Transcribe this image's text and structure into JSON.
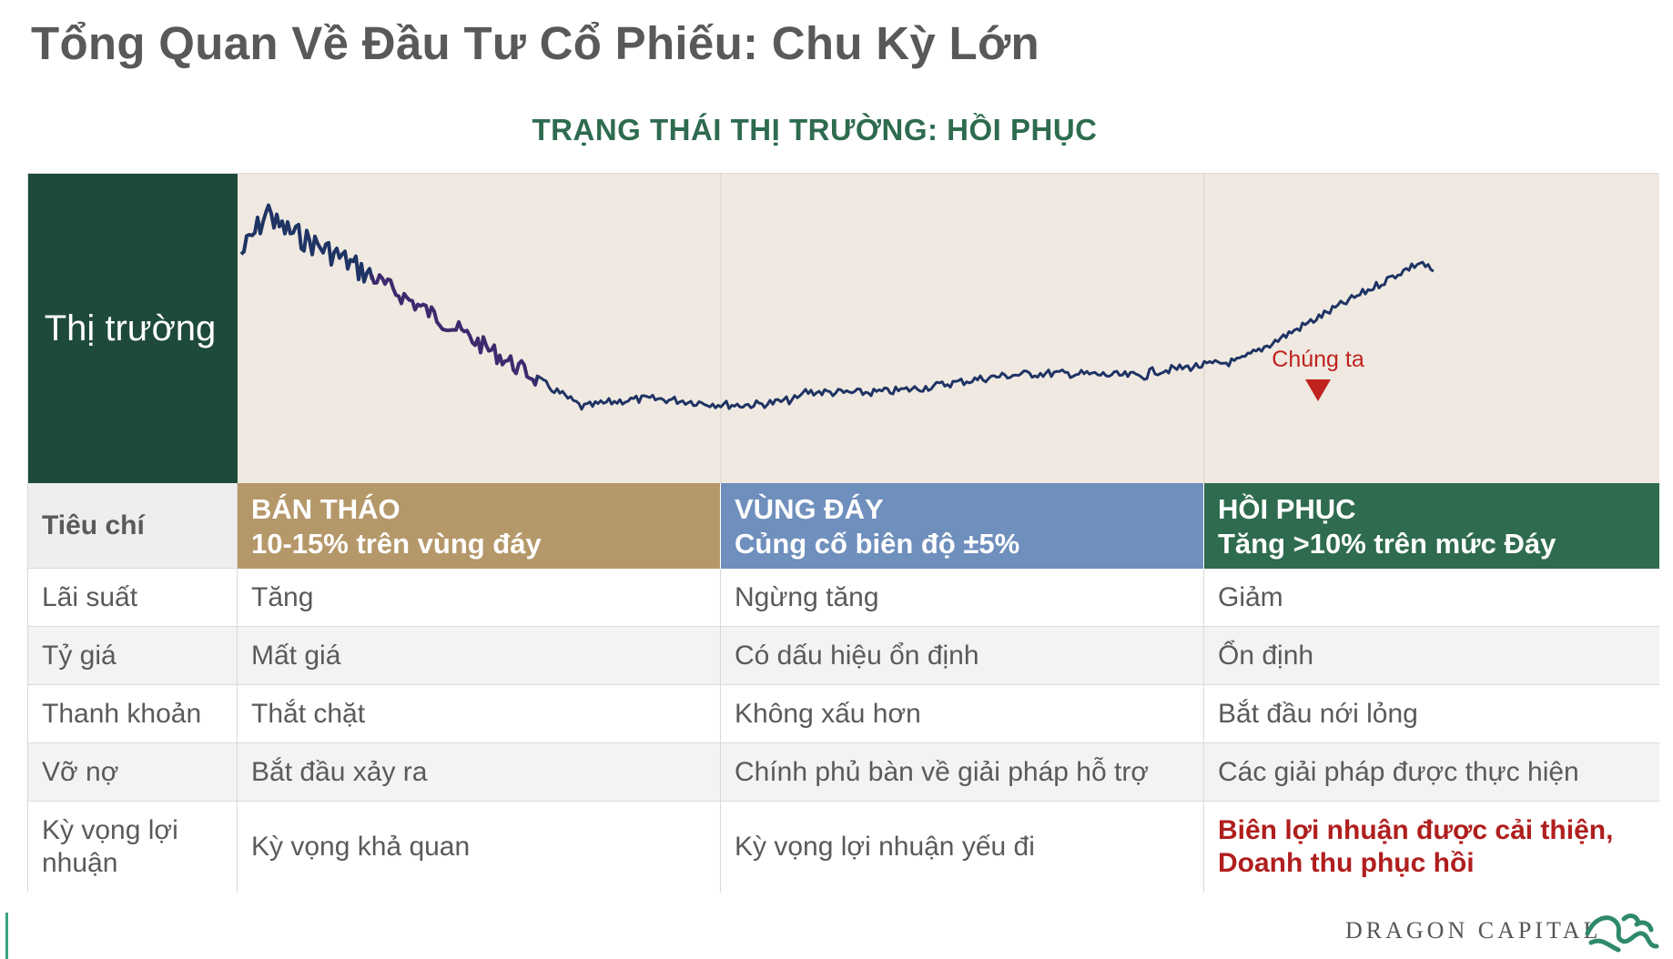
{
  "title": "Tổng Quan Về Đầu Tư Cổ Phiếu: Chu Kỳ Lớn",
  "subtitle": "TRẠNG THÁI THỊ TRƯỜNG: HỒI PHỤC",
  "market_label": "Thị trường",
  "marker_label": "Chúng ta",
  "criteria_header": "Tiêu chí",
  "phases": [
    {
      "title": "BÁN THÁO",
      "desc": "10-15% trên vùng đáy",
      "color": "#b5986a"
    },
    {
      "title": "VÙNG ĐÁY",
      "desc": "Củng cố biên độ ±5%",
      "color": "#6f8fbd"
    },
    {
      "title": "HỒI PHỤC",
      "desc": "Tăng >10% trên mức Đáy",
      "color": "#2f6b4e"
    }
  ],
  "rows": [
    {
      "criterion": "Lãi suất",
      "values": [
        "Tăng",
        "Ngừng tăng",
        "Giảm"
      ]
    },
    {
      "criterion": "Tỷ giá",
      "values": [
        "Mất giá",
        "Có dấu hiệu ổn định",
        "Ổn định"
      ]
    },
    {
      "criterion": "Thanh khoản",
      "values": [
        "Thắt chặt",
        "Không xấu hơn",
        "Bắt đầu nới lỏng"
      ]
    },
    {
      "criterion": "Vỡ nợ",
      "values": [
        "Bắt đầu xảy ra",
        "Chính phủ bàn về giải pháp hỗ trợ",
        "Các giải pháp được thực hiện"
      ]
    },
    {
      "criterion": "Kỳ vọng lợi nhuận",
      "values": [
        "Kỳ vọng khả quan",
        "Kỳ vọng lợi nhuận yếu đi",
        "Biên lợi nhuận được cải thiện, Doanh thu phục hồi"
      ]
    }
  ],
  "logo": "DRAGON CAPITAL",
  "colors": {
    "line": "#1f3364",
    "line_purple": "#3c2a6e",
    "marker": "#c0221f",
    "dark_green": "#1e4a39",
    "highlight": "#b01e1e"
  }
}
